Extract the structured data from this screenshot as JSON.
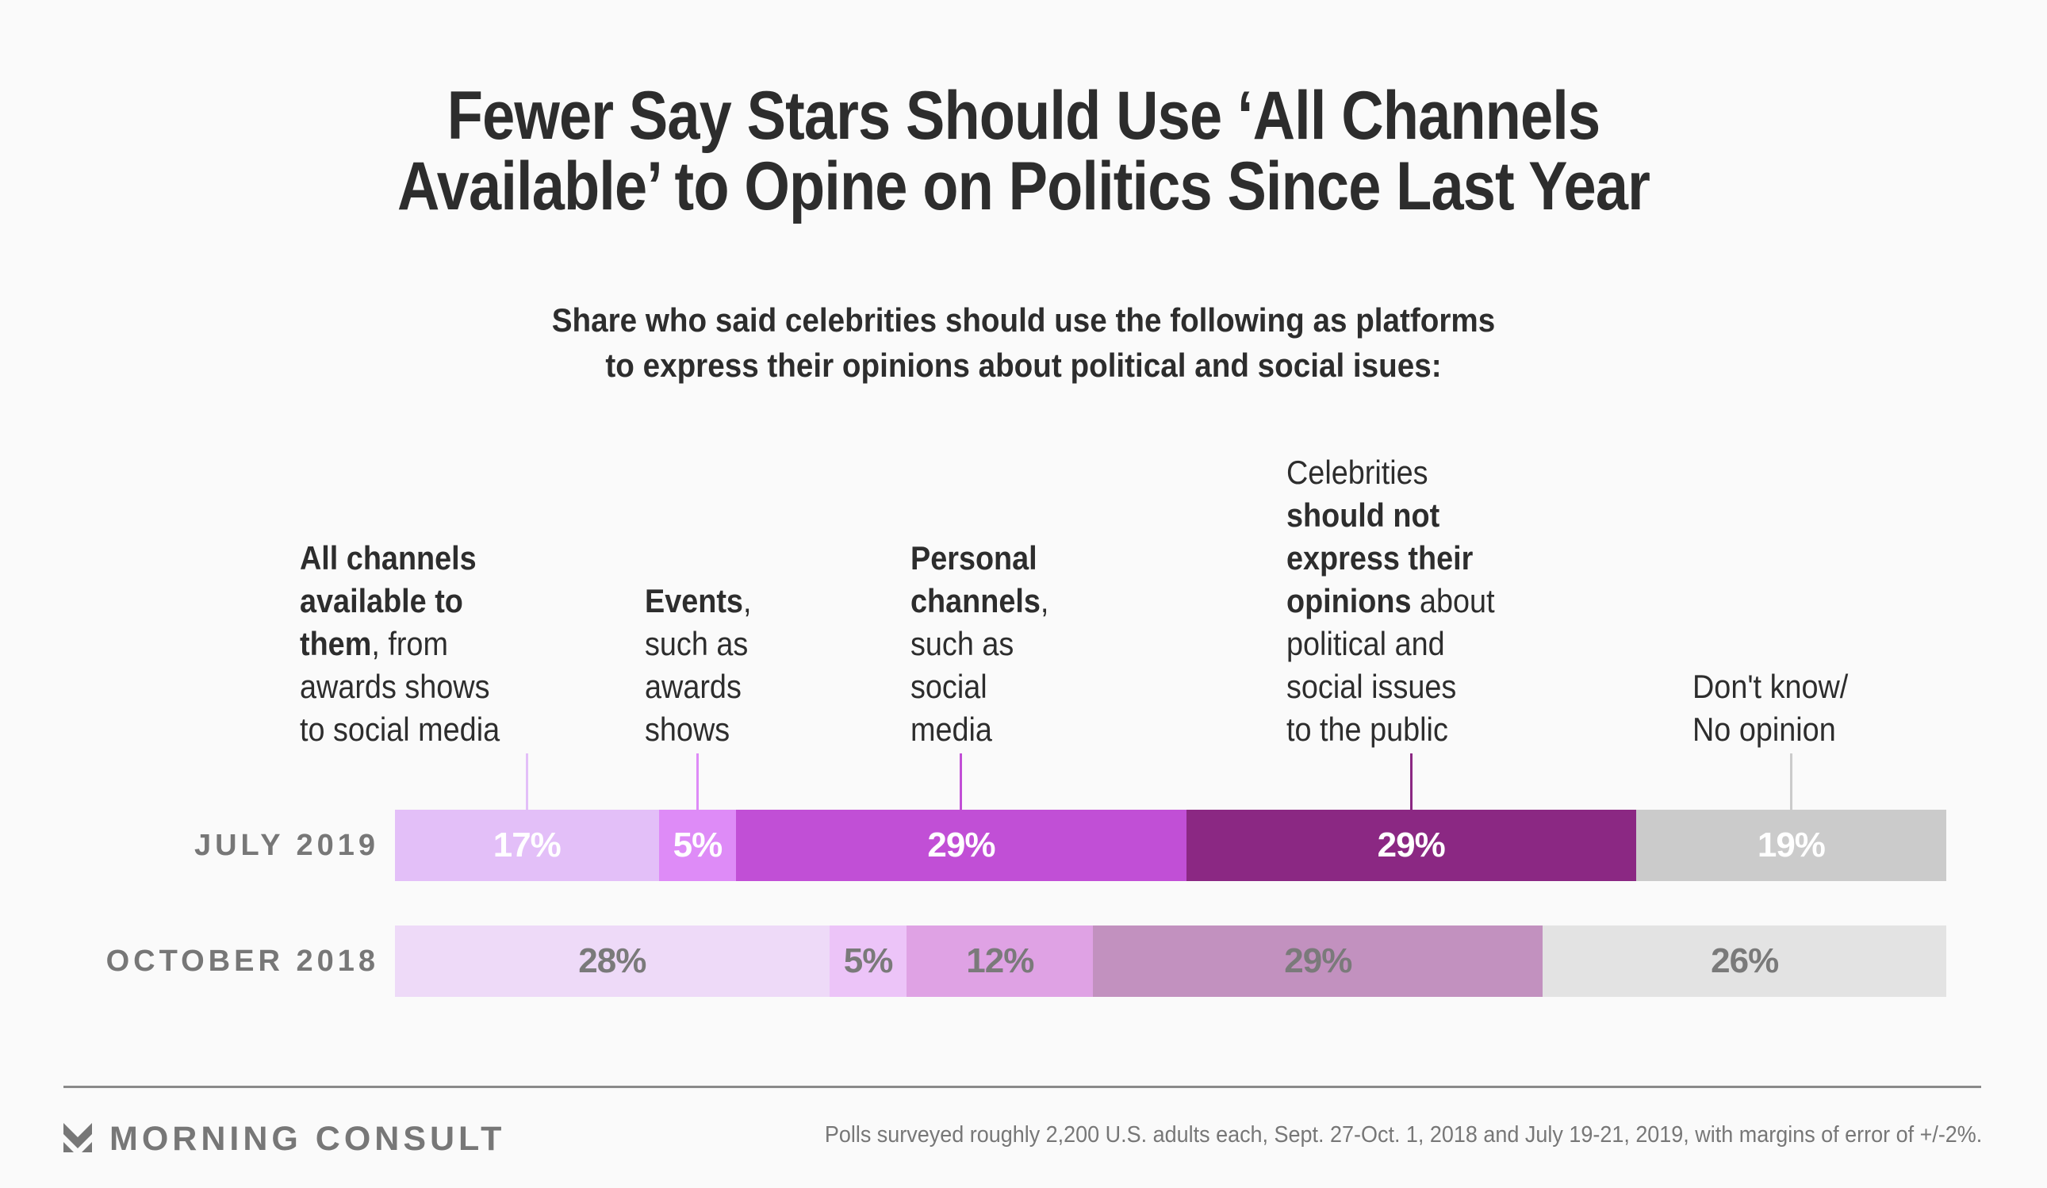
{
  "header": {
    "title_lines": [
      "Fewer Say Stars Should Use ‘All Channels",
      "Available’ to Opine on Politics Since Last Year"
    ],
    "subtitle_lines": [
      "Share who said celebrities should use the following as platforms",
      "to express their opinions about political and social isues:"
    ]
  },
  "chart_data": {
    "type": "bar",
    "orientation": "horizontal",
    "stacked": true,
    "unit": "%",
    "title": "Fewer Say Stars Should Use ‘All Channels Available’ to Opine on Politics Since Last Year",
    "subtitle": "Share who said celebrities should use the following as platforms to express their opinions about political and social isues:",
    "categories": [
      "JULY 2019",
      "OCTOBER 2018"
    ],
    "series": [
      {
        "name": "All channels available to them, from awards shows to social media",
        "label_parts": [
          [
            {
              "t": "All channels",
              "b": true
            }
          ],
          [
            {
              "t": "available to",
              "b": true
            }
          ],
          [
            {
              "t": "them",
              "b": true
            },
            {
              "t": ", from",
              "b": false
            }
          ],
          [
            {
              "t": "awards shows",
              "b": false
            }
          ],
          [
            {
              "t": "to social media",
              "b": false
            }
          ]
        ],
        "values": [
          17,
          28
        ],
        "colors": [
          "#e3bff8",
          "#eedaf8"
        ]
      },
      {
        "name": "Events, such as awards shows",
        "label_parts": [
          [
            {
              "t": "Events",
              "b": true
            },
            {
              "t": ",",
              "b": false
            }
          ],
          [
            {
              "t": "such as",
              "b": false
            }
          ],
          [
            {
              "t": "awards",
              "b": false
            }
          ],
          [
            {
              "t": "shows",
              "b": false
            }
          ]
        ],
        "values": [
          5,
          5
        ],
        "colors": [
          "#de8bf7",
          "#ecc4f8"
        ]
      },
      {
        "name": "Personal channels, such as social media",
        "label_parts": [
          [
            {
              "t": "Personal",
              "b": true
            }
          ],
          [
            {
              "t": "channels",
              "b": true
            },
            {
              "t": ",",
              "b": false
            }
          ],
          [
            {
              "t": "such as",
              "b": false
            }
          ],
          [
            {
              "t": "social",
              "b": false
            }
          ],
          [
            {
              "t": "media",
              "b": false
            }
          ]
        ],
        "values": [
          29,
          12
        ],
        "colors": [
          "#c14fd6",
          "#dfa2e4"
        ]
      },
      {
        "name": "Celebrities should not express their opinions about political and social issues to the public",
        "label_parts": [
          [
            {
              "t": "Celebrities",
              "b": false
            }
          ],
          [
            {
              "t": "should not",
              "b": true
            }
          ],
          [
            {
              "t": "express their",
              "b": true
            }
          ],
          [
            {
              "t": "opinions",
              "b": true
            },
            {
              "t": " about",
              "b": false
            }
          ],
          [
            {
              "t": "political and",
              "b": false
            }
          ],
          [
            {
              "t": "social issues",
              "b": false
            }
          ],
          [
            {
              "t": "to the public",
              "b": false
            }
          ]
        ],
        "values": [
          29,
          29
        ],
        "colors": [
          "#8b2883",
          "#c291bf"
        ]
      },
      {
        "name": "Don't know/ No opinion",
        "label_parts": [
          [
            {
              "t": "Don't know/",
              "b": false
            }
          ],
          [
            {
              "t": "No opinion",
              "b": false
            }
          ]
        ],
        "values": [
          19,
          26
        ],
        "colors": [
          "#cbcbcb",
          "#e3e3e3"
        ]
      }
    ],
    "value_text_colors": [
      "#ffffff",
      "#7a7a7a"
    ],
    "leader_colors": [
      "#e3bff8",
      "#de8bf7",
      "#c14fd6",
      "#8b2883",
      "#cbcbcb"
    ],
    "xlim": [
      0,
      100
    ],
    "grid": false,
    "legend": "top (labels above bars)"
  },
  "footer": {
    "brand": "MORNING CONSULT",
    "note": "Polls surveyed roughly 2,200 U.S. adults each, Sept. 27-Oct. 1, 2018 and July 19-21, 2019, with margins of error of +/-2%."
  }
}
